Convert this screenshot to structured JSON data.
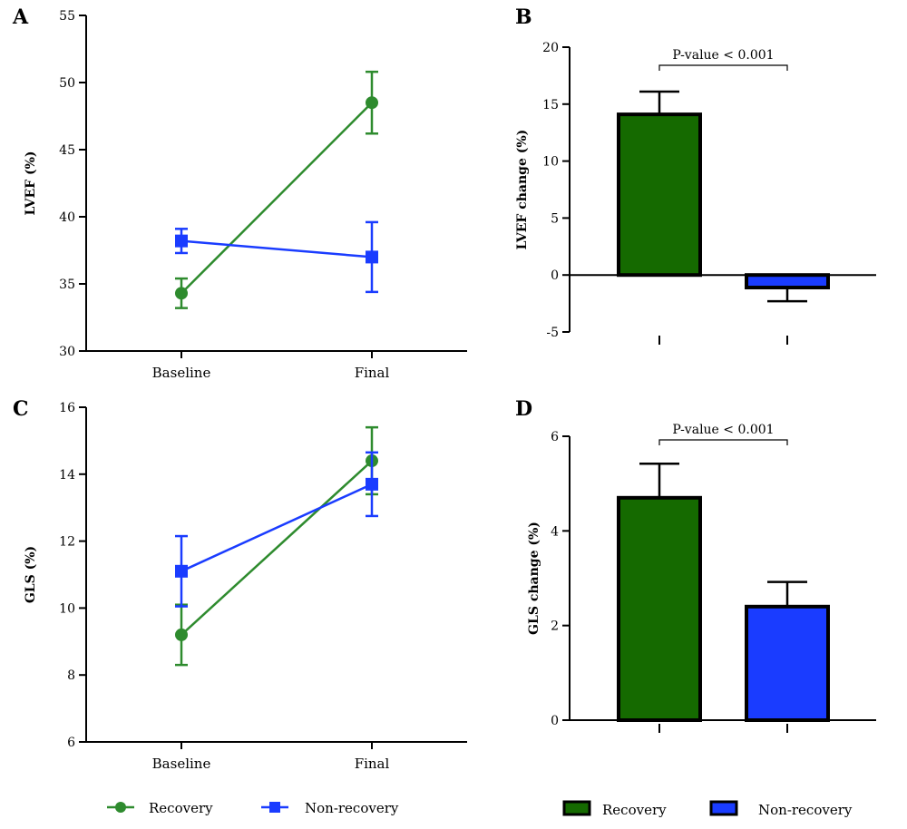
{
  "colors": {
    "recovery": "#2e8b2e",
    "recovery_bar": "#156a00",
    "nonrecovery": "#1a3cff",
    "axis": "#000000"
  },
  "legend_left": {
    "recovery": "Recovery",
    "nonrecovery": "Non-recovery"
  },
  "legend_right": {
    "recovery": "Recovery",
    "nonrecovery": "Non-recovery"
  },
  "chart_data": [
    {
      "panel": "A",
      "type": "line",
      "ylabel": "LVEF (%)",
      "categories": [
        "Baseline",
        "Final"
      ],
      "ylim": [
        30,
        55
      ],
      "yticks": [
        30,
        35,
        40,
        45,
        50,
        55
      ],
      "series": [
        {
          "name": "Recovery",
          "marker": "circle",
          "values": [
            34.3,
            48.5
          ],
          "err": [
            1.1,
            2.3
          ]
        },
        {
          "name": "Non-recovery",
          "marker": "square",
          "values": [
            38.2,
            37.0
          ],
          "err": [
            0.9,
            2.6
          ]
        }
      ]
    },
    {
      "panel": "B",
      "type": "bar",
      "ylabel": "LVEF change (%)",
      "categories": [
        "Recovery",
        "Non-recovery"
      ],
      "ylim": [
        -5,
        20
      ],
      "yticks": [
        -5,
        0,
        5,
        10,
        15,
        20
      ],
      "values": [
        14.1,
        -1.1
      ],
      "err": [
        2.0,
        1.2
      ],
      "annotation": "P-value < 0.001"
    },
    {
      "panel": "C",
      "type": "line",
      "ylabel": "GLS (%)",
      "categories": [
        "Baseline",
        "Final"
      ],
      "ylim": [
        6,
        16
      ],
      "yticks": [
        6,
        8,
        10,
        12,
        14,
        16
      ],
      "series": [
        {
          "name": "Recovery",
          "marker": "circle",
          "values": [
            9.2,
            14.4
          ],
          "err": [
            0.9,
            1.0
          ]
        },
        {
          "name": "Non-recovery",
          "marker": "square",
          "values": [
            11.1,
            13.7
          ],
          "err": [
            1.05,
            0.95
          ]
        }
      ]
    },
    {
      "panel": "D",
      "type": "bar",
      "ylabel": "GLS change (%)",
      "categories": [
        "Recovery",
        "Non-recovery"
      ],
      "ylim": [
        0,
        6
      ],
      "yticks": [
        0,
        2,
        4,
        6
      ],
      "values": [
        4.7,
        2.4
      ],
      "err": [
        0.72,
        0.52
      ],
      "annotation": "P-value < 0.001"
    }
  ]
}
